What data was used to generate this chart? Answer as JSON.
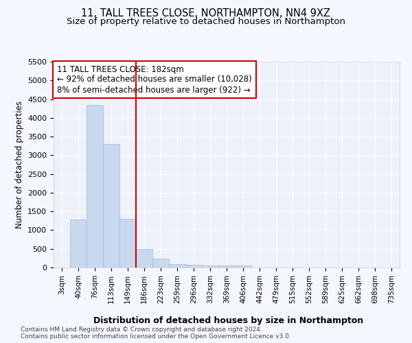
{
  "title1": "11, TALL TREES CLOSE, NORTHAMPTON, NN4 9XZ",
  "title2": "Size of property relative to detached houses in Northampton",
  "xlabel": "Distribution of detached houses by size in Northampton",
  "ylabel": "Number of detached properties",
  "annotation_title": "11 TALL TREES CLOSE: 182sqm",
  "annotation_line1": "← 92% of detached houses are smaller (10,028)",
  "annotation_line2": "8% of semi-detached houses are larger (922) →",
  "footnote1": "Contains HM Land Registry data © Crown copyright and database right 2024.",
  "footnote2": "Contains public sector information licensed under the Open Government Licence v3.0.",
  "bar_color": "#c8d8ee",
  "bar_edge_color": "#a0b8d8",
  "vline_color": "#cc0000",
  "vline_x": 4.5,
  "categories": [
    "3sqm",
    "40sqm",
    "76sqm",
    "113sqm",
    "149sqm",
    "186sqm",
    "223sqm",
    "259sqm",
    "296sqm",
    "332sqm",
    "369sqm",
    "406sqm",
    "442sqm",
    "479sqm",
    "515sqm",
    "552sqm",
    "589sqm",
    "625sqm",
    "662sqm",
    "698sqm",
    "735sqm"
  ],
  "values": [
    0,
    1280,
    4340,
    3300,
    1300,
    490,
    240,
    100,
    70,
    55,
    50,
    50,
    0,
    0,
    0,
    0,
    0,
    0,
    0,
    0,
    0
  ],
  "ylim": [
    0,
    5500
  ],
  "yticks": [
    0,
    500,
    1000,
    1500,
    2000,
    2500,
    3000,
    3500,
    4000,
    4500,
    5000,
    5500
  ],
  "background_color": "#f5f7ff",
  "plot_bg_color": "#eef1fa",
  "grid_color": "#ffffff",
  "title1_fontsize": 10.5,
  "title2_fontsize": 9.5,
  "ann_fontsize": 8.5,
  "annotation_box_color": "#cc0000",
  "footnote_fontsize": 6.5
}
